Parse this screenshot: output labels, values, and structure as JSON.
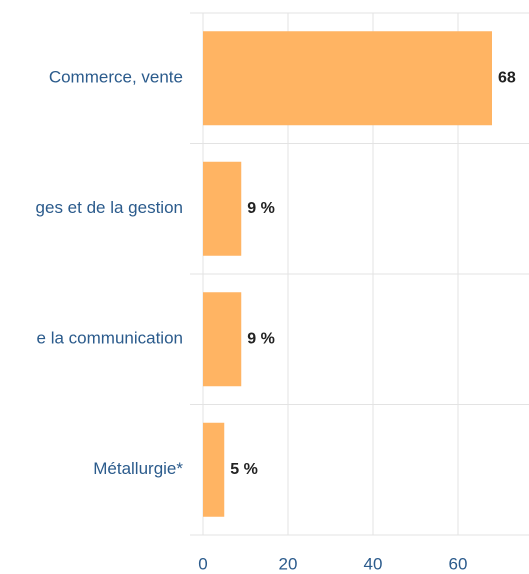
{
  "chart_data": {
    "type": "bar",
    "orientation": "horizontal",
    "categories": [
      "Commerce, vente",
      "ges et de la gestion",
      "e la communication",
      "Métallurgie*"
    ],
    "values": [
      68,
      9,
      9,
      5
    ],
    "value_labels": [
      "68",
      "9 %",
      "9 %",
      "5 %"
    ],
    "color": "#ffb463",
    "xlim": [
      0,
      80
    ],
    "xticks": [
      0,
      20,
      40,
      60
    ],
    "grid": true
  }
}
